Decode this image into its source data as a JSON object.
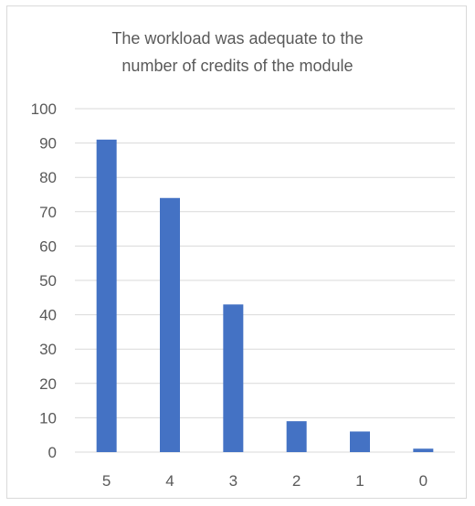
{
  "chart_data": {
    "type": "bar",
    "title_lines": [
      "The workload was adequate to the",
      "number of credits of the module"
    ],
    "categories": [
      "5",
      "4",
      "3",
      "2",
      "1",
      "0"
    ],
    "values": [
      91,
      74,
      43,
      9,
      6,
      1
    ],
    "y_ticks": [
      "0",
      "10",
      "20",
      "30",
      "40",
      "50",
      "60",
      "70",
      "80",
      "90",
      "100"
    ],
    "ylim": [
      0,
      100
    ],
    "y_step": 10,
    "grid": true,
    "legend": "none",
    "bar_color": "#4472c4",
    "grid_color": "#d9d9d9",
    "text_color": "#595959"
  }
}
